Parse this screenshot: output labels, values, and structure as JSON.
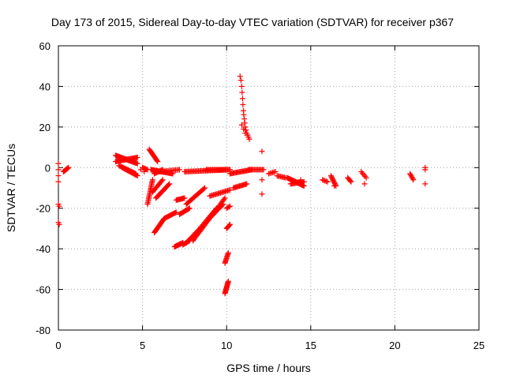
{
  "chart_data": {
    "type": "scatter",
    "title": "Day 173 of 2015, Sidereal Day-to-day VTEC variation (SDTVAR) for receiver p367",
    "xlabel": "GPS time / hours",
    "ylabel": "SDTVAR / TECUs",
    "xlim": [
      0,
      25
    ],
    "ylim": [
      -80,
      60
    ],
    "xticks": [
      0,
      5,
      10,
      15,
      20,
      25
    ],
    "yticks": [
      -80,
      -60,
      -40,
      -20,
      0,
      20,
      40,
      60
    ],
    "grid": true,
    "marker": "+",
    "color": "#ff0000",
    "segments": [
      {
        "x0": 0.0,
        "y0": 2.0,
        "x1": 0.0,
        "y1": -7.0,
        "n": 4
      },
      {
        "x0": 0.0,
        "y0": -18.0,
        "x1": 0.05,
        "y1": -19.0,
        "n": 2
      },
      {
        "x0": 0.0,
        "y0": -27.0,
        "x1": 0.05,
        "y1": -28.0,
        "n": 2
      },
      {
        "x0": 0.3,
        "y0": -2.0,
        "x1": 0.6,
        "y1": 0.0,
        "n": 8
      },
      {
        "x0": 3.4,
        "y0": 6.0,
        "x1": 4.7,
        "y1": 2.0,
        "n": 28
      },
      {
        "x0": 3.4,
        "y0": 3.0,
        "x1": 4.7,
        "y1": 5.0,
        "n": 24
      },
      {
        "x0": 3.6,
        "y0": 1.0,
        "x1": 4.6,
        "y1": -3.0,
        "n": 18
      },
      {
        "x0": 3.8,
        "y0": 0.0,
        "x1": 4.7,
        "y1": -4.0,
        "n": 16
      },
      {
        "x0": 5.0,
        "y0": 0.0,
        "x1": 5.3,
        "y1": -1.0,
        "n": 6
      },
      {
        "x0": 5.4,
        "y0": 9.0,
        "x1": 5.9,
        "y1": 3.0,
        "n": 14
      },
      {
        "x0": 5.5,
        "y0": -1.0,
        "x1": 6.8,
        "y1": -3.0,
        "n": 26
      },
      {
        "x0": 5.3,
        "y0": -18.0,
        "x1": 5.6,
        "y1": -6.0,
        "n": 18
      },
      {
        "x0": 5.6,
        "y0": -12.0,
        "x1": 6.2,
        "y1": -6.0,
        "n": 12
      },
      {
        "x0": 5.7,
        "y0": -3.0,
        "x1": 6.2,
        "y1": -1.0,
        "n": 10
      },
      {
        "x0": 5.8,
        "y0": -15.0,
        "x1": 6.6,
        "y1": -8.0,
        "n": 16
      },
      {
        "x0": 5.7,
        "y0": -32.0,
        "x1": 6.3,
        "y1": -25.0,
        "n": 18
      },
      {
        "x0": 6.3,
        "y0": -25.0,
        "x1": 7.0,
        "y1": -22.0,
        "n": 14
      },
      {
        "x0": 6.0,
        "y0": -2.0,
        "x1": 7.2,
        "y1": -1.0,
        "n": 16
      },
      {
        "x0": 6.9,
        "y0": -39.0,
        "x1": 7.4,
        "y1": -37.0,
        "n": 12
      },
      {
        "x0": 7.0,
        "y0": -16.0,
        "x1": 7.5,
        "y1": -15.0,
        "n": 10
      },
      {
        "x0": 7.2,
        "y0": -23.0,
        "x1": 7.8,
        "y1": -20.0,
        "n": 12
      },
      {
        "x0": 7.4,
        "y0": -38.0,
        "x1": 7.8,
        "y1": -36.0,
        "n": 8
      },
      {
        "x0": 7.6,
        "y0": -18.0,
        "x1": 8.7,
        "y1": -10.0,
        "n": 20
      },
      {
        "x0": 7.6,
        "y0": -37.0,
        "x1": 9.8,
        "y1": -18.0,
        "n": 36
      },
      {
        "x0": 8.0,
        "y0": -36.0,
        "x1": 9.9,
        "y1": -15.0,
        "n": 34
      },
      {
        "x0": 8.3,
        "y0": -31.0,
        "x1": 9.4,
        "y1": -20.0,
        "n": 20
      },
      {
        "x0": 9.0,
        "y0": -14.0,
        "x1": 10.2,
        "y1": -11.0,
        "n": 18
      },
      {
        "x0": 7.5,
        "y0": -2.0,
        "x1": 10.2,
        "y1": -1.0,
        "n": 40
      },
      {
        "x0": 8.8,
        "y0": -1.0,
        "x1": 10.2,
        "y1": -1.0,
        "n": 20
      },
      {
        "x0": 9.9,
        "y0": -62.0,
        "x1": 10.1,
        "y1": -56.0,
        "n": 14
      },
      {
        "x0": 9.9,
        "y0": -47.0,
        "x1": 10.1,
        "y1": -42.0,
        "n": 10
      },
      {
        "x0": 10.0,
        "y0": -30.0,
        "x1": 10.2,
        "y1": -28.0,
        "n": 6
      },
      {
        "x0": 10.0,
        "y0": -20.0,
        "x1": 10.2,
        "y1": -19.0,
        "n": 4
      },
      {
        "x0": 10.2,
        "y0": -3.0,
        "x1": 11.5,
        "y1": -1.0,
        "n": 22
      },
      {
        "x0": 10.4,
        "y0": -10.0,
        "x1": 11.2,
        "y1": -8.0,
        "n": 14
      },
      {
        "x0": 11.3,
        "y0": -1.0,
        "x1": 12.2,
        "y1": -1.0,
        "n": 14
      },
      {
        "x0": 12.5,
        "y0": -3.0,
        "x1": 12.9,
        "y1": -2.0,
        "n": 6
      },
      {
        "x0": 13.0,
        "y0": -4.0,
        "x1": 13.5,
        "y1": -5.0,
        "n": 8
      },
      {
        "x0": 13.6,
        "y0": -5.0,
        "x1": 14.6,
        "y1": -9.0,
        "n": 22
      },
      {
        "x0": 13.8,
        "y0": -8.0,
        "x1": 14.6,
        "y1": -7.0,
        "n": 14
      },
      {
        "x0": 15.7,
        "y0": -6.0,
        "x1": 16.0,
        "y1": -7.0,
        "n": 5
      },
      {
        "x0": 16.2,
        "y0": -4.0,
        "x1": 16.5,
        "y1": -9.0,
        "n": 10
      },
      {
        "x0": 17.2,
        "y0": -5.0,
        "x1": 17.4,
        "y1": -7.0,
        "n": 5
      },
      {
        "x0": 18.0,
        "y0": -2.0,
        "x1": 18.3,
        "y1": -5.0,
        "n": 5
      },
      {
        "x0": 20.9,
        "y0": -3.0,
        "x1": 21.1,
        "y1": -6.0,
        "n": 6
      },
      {
        "x0": 21.8,
        "y0": 0.0,
        "x1": 21.8,
        "y1": -1.0,
        "n": 2
      }
    ],
    "points": [
      {
        "x": 4.9,
        "y": -1.0
      },
      {
        "x": 5.1,
        "y": -2.0
      },
      {
        "x": 10.8,
        "y": 45.0
      },
      {
        "x": 10.85,
        "y": 43.0
      },
      {
        "x": 10.9,
        "y": 40.0
      },
      {
        "x": 10.92,
        "y": 37.0
      },
      {
        "x": 10.95,
        "y": 34.0
      },
      {
        "x": 10.97,
        "y": 31.0
      },
      {
        "x": 11.0,
        "y": 28.0
      },
      {
        "x": 11.02,
        "y": 26.0
      },
      {
        "x": 11.05,
        "y": 24.0
      },
      {
        "x": 11.08,
        "y": 22.0
      },
      {
        "x": 11.1,
        "y": 20.0
      },
      {
        "x": 11.15,
        "y": 18.5
      },
      {
        "x": 11.2,
        "y": 17.0
      },
      {
        "x": 11.25,
        "y": 16.0
      },
      {
        "x": 11.3,
        "y": 15.0
      },
      {
        "x": 11.35,
        "y": 14.0
      },
      {
        "x": 10.9,
        "y": 21.0
      },
      {
        "x": 11.0,
        "y": 19.0
      },
      {
        "x": 11.1,
        "y": 17.0
      },
      {
        "x": 12.1,
        "y": 8.0
      },
      {
        "x": 12.1,
        "y": -6.0
      },
      {
        "x": 12.1,
        "y": -13.0
      },
      {
        "x": 14.4,
        "y": -6.0
      },
      {
        "x": 16.4,
        "y": -9.0
      },
      {
        "x": 18.2,
        "y": -8.0
      },
      {
        "x": 21.8,
        "y": -8.0
      }
    ]
  }
}
